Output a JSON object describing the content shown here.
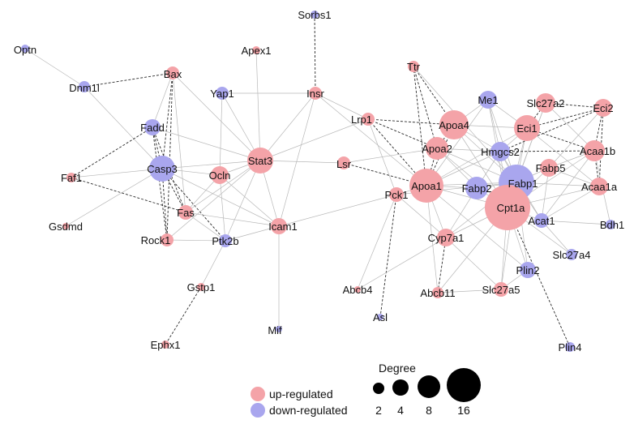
{
  "colors": {
    "up": "#f4a3a8",
    "down": "#a9a6ee",
    "edge_solid": "#b8b8b8",
    "edge_dashed": "#2a2a2a",
    "text": "#111111"
  },
  "network": {
    "nodes": [
      {
        "id": "Optn",
        "label": "Optn",
        "reg": "down"
      },
      {
        "id": "Dnm1l",
        "label": "Dnm1l",
        "reg": "down"
      },
      {
        "id": "Bax",
        "label": "Bax",
        "reg": "up"
      },
      {
        "id": "Apex1",
        "label": "Apex1",
        "reg": "up"
      },
      {
        "id": "Sorbs1",
        "label": "Sorbs1",
        "reg": "down"
      },
      {
        "id": "Yap1",
        "label": "Yap1",
        "reg": "down"
      },
      {
        "id": "Insr",
        "label": "Insr",
        "reg": "up"
      },
      {
        "id": "Fadd",
        "label": "Fadd",
        "reg": "down"
      },
      {
        "id": "Casp3",
        "label": "Casp3",
        "reg": "down"
      },
      {
        "id": "Faf1",
        "label": "Faf1",
        "reg": "up"
      },
      {
        "id": "Ocln",
        "label": "Ocln",
        "reg": "up"
      },
      {
        "id": "Stat3",
        "label": "Stat3",
        "reg": "up"
      },
      {
        "id": "Fas",
        "label": "Fas",
        "reg": "up"
      },
      {
        "id": "Gsdmd",
        "label": "Gsdmd",
        "reg": "up"
      },
      {
        "id": "Rock1",
        "label": "Rock1",
        "reg": "up"
      },
      {
        "id": "Ptk2b",
        "label": "Ptk2b",
        "reg": "down"
      },
      {
        "id": "Icam1",
        "label": "Icam1",
        "reg": "up"
      },
      {
        "id": "Gstp1",
        "label": "Gstp1",
        "reg": "up"
      },
      {
        "id": "Ephx1",
        "label": "Ephx1",
        "reg": "up"
      },
      {
        "id": "Mif",
        "label": "Mif",
        "reg": "down"
      },
      {
        "id": "Lrp1",
        "label": "Lrp1",
        "reg": "up"
      },
      {
        "id": "Lsr",
        "label": "Lsr",
        "reg": "up"
      },
      {
        "id": "Ttr",
        "label": "Ttr",
        "reg": "up"
      },
      {
        "id": "Apoa4",
        "label": "Apoa4",
        "reg": "up"
      },
      {
        "id": "Apoa2",
        "label": "Apoa2",
        "reg": "up"
      },
      {
        "id": "Apoa1",
        "label": "Apoa1",
        "reg": "up"
      },
      {
        "id": "Pck1",
        "label": "Pck1",
        "reg": "up"
      },
      {
        "id": "Me1",
        "label": "Me1",
        "reg": "down"
      },
      {
        "id": "Eci1",
        "label": "Eci1",
        "reg": "up"
      },
      {
        "id": "Slc27a2",
        "label": "Slc27a2",
        "reg": "up"
      },
      {
        "id": "Eci2",
        "label": "Eci2",
        "reg": "up"
      },
      {
        "id": "Hmgcs2",
        "label": "Hmgcs2",
        "reg": "down"
      },
      {
        "id": "Acaa1b",
        "label": "Acaa1b",
        "reg": "up"
      },
      {
        "id": "Fabp5",
        "label": "Fabp5",
        "reg": "up"
      },
      {
        "id": "Fabp1",
        "label": "Fabp1",
        "reg": "down"
      },
      {
        "id": "Fabp2",
        "label": "Fabp2",
        "reg": "down"
      },
      {
        "id": "Acaa1a",
        "label": "Acaa1a",
        "reg": "up"
      },
      {
        "id": "Cpt1a",
        "label": "Cpt1a",
        "reg": "up"
      },
      {
        "id": "Acat1",
        "label": "Acat1",
        "reg": "down"
      },
      {
        "id": "Bdh1",
        "label": "Bdh1",
        "reg": "down"
      },
      {
        "id": "Cyp7a1",
        "label": "Cyp7a1",
        "reg": "up"
      },
      {
        "id": "Slc27a4",
        "label": "Slc27a4",
        "reg": "down"
      },
      {
        "id": "Plin2",
        "label": "Plin2",
        "reg": "down"
      },
      {
        "id": "Abcb4",
        "label": "Abcb4",
        "reg": "up"
      },
      {
        "id": "Abcb11",
        "label": "Abcb11",
        "reg": "up"
      },
      {
        "id": "Slc27a5",
        "label": "Slc27a5",
        "reg": "up"
      },
      {
        "id": "Asl",
        "label": "Asl",
        "reg": "down"
      },
      {
        "id": "Plin4",
        "label": "Plin4",
        "reg": "down"
      }
    ],
    "edges": [
      [
        "Optn",
        "Dnm1l",
        "solid"
      ],
      [
        "Dnm1l",
        "Bax",
        "dashed"
      ],
      [
        "Dnm1l",
        "Casp3",
        "solid"
      ],
      [
        "Bax",
        "Casp3",
        "dashed"
      ],
      [
        "Bax",
        "Fadd",
        "solid"
      ],
      [
        "Bax",
        "Fas",
        "solid"
      ],
      [
        "Bax",
        "Rock1",
        "dashed"
      ],
      [
        "Bax",
        "Stat3",
        "solid"
      ],
      [
        "Apex1",
        "Stat3",
        "solid"
      ],
      [
        "Sorbs1",
        "Insr",
        "dashed"
      ],
      [
        "Yap1",
        "Insr",
        "solid"
      ],
      [
        "Yap1",
        "Stat3",
        "solid"
      ],
      [
        "Yap1",
        "Ocln",
        "solid"
      ],
      [
        "Insr",
        "Stat3",
        "solid"
      ],
      [
        "Insr",
        "Lrp1",
        "solid"
      ],
      [
        "Insr",
        "Apoa1",
        "solid"
      ],
      [
        "Insr",
        "Icam1",
        "solid"
      ],
      [
        "Fadd",
        "Casp3",
        "dashed"
      ],
      [
        "Fadd",
        "Fas",
        "dashed"
      ],
      [
        "Fadd",
        "Faf1",
        "dashed"
      ],
      [
        "Fadd",
        "Stat3",
        "solid"
      ],
      [
        "Fadd",
        "Rock1",
        "dashed"
      ],
      [
        "Casp3",
        "Faf1",
        "solid"
      ],
      [
        "Casp3",
        "Fas",
        "dashed"
      ],
      [
        "Casp3",
        "Rock1",
        "dashed"
      ],
      [
        "Casp3",
        "Ptk2b",
        "dashed"
      ],
      [
        "Casp3",
        "Stat3",
        "solid"
      ],
      [
        "Casp3",
        "Ocln",
        "solid"
      ],
      [
        "Casp3",
        "Icam1",
        "solid"
      ],
      [
        "Casp3",
        "Gsdmd",
        "solid"
      ],
      [
        "Faf1",
        "Fas",
        "dashed"
      ],
      [
        "Ocln",
        "Stat3",
        "solid"
      ],
      [
        "Ocln",
        "Ptk2b",
        "solid"
      ],
      [
        "Ocln",
        "Icam1",
        "solid"
      ],
      [
        "Ocln",
        "Fas",
        "solid"
      ],
      [
        "Stat3",
        "Fas",
        "solid"
      ],
      [
        "Stat3",
        "Icam1",
        "solid"
      ],
      [
        "Stat3",
        "Ptk2b",
        "solid"
      ],
      [
        "Stat3",
        "Lrp1",
        "solid"
      ],
      [
        "Stat3",
        "Lsr",
        "solid"
      ],
      [
        "Stat3",
        "Rock1",
        "solid"
      ],
      [
        "Fas",
        "Icam1",
        "solid"
      ],
      [
        "Fas",
        "Ptk2b",
        "solid"
      ],
      [
        "Rock1",
        "Ptk2b",
        "solid"
      ],
      [
        "Ptk2b",
        "Icam1",
        "solid"
      ],
      [
        "Ptk2b",
        "Gstp1",
        "solid"
      ],
      [
        "Gstp1",
        "Ephx1",
        "dashed"
      ],
      [
        "Icam1",
        "Mif",
        "solid"
      ],
      [
        "Icam1",
        "Pck1",
        "solid"
      ],
      [
        "Lrp1",
        "Apoa4",
        "dashed"
      ],
      [
        "Lrp1",
        "Apoa2",
        "dashed"
      ],
      [
        "Lrp1",
        "Apoa1",
        "dashed"
      ],
      [
        "Lrp1",
        "Pck1",
        "solid"
      ],
      [
        "Lsr",
        "Apoa1",
        "dashed"
      ],
      [
        "Lsr",
        "Apoa2",
        "solid"
      ],
      [
        "Ttr",
        "Apoa4",
        "dashed"
      ],
      [
        "Ttr",
        "Apoa2",
        "dashed"
      ],
      [
        "Ttr",
        "Apoa1",
        "dashed"
      ],
      [
        "Ttr",
        "Fabp1",
        "solid"
      ],
      [
        "Apoa4",
        "Apoa2",
        "dashed"
      ],
      [
        "Apoa4",
        "Apoa1",
        "dashed"
      ],
      [
        "Apoa4",
        "Me1",
        "solid"
      ],
      [
        "Apoa4",
        "Hmgcs2",
        "solid"
      ],
      [
        "Apoa4",
        "Fabp1",
        "solid"
      ],
      [
        "Apoa4",
        "Cpt1a",
        "solid"
      ],
      [
        "Apoa4",
        "Eci1",
        "solid"
      ],
      [
        "Apoa2",
        "Apoa1",
        "dashed"
      ],
      [
        "Apoa2",
        "Fabp1",
        "solid"
      ],
      [
        "Apoa2",
        "Cpt1a",
        "solid"
      ],
      [
        "Apoa2",
        "Hmgcs2",
        "solid"
      ],
      [
        "Apoa2",
        "Fabp2",
        "solid"
      ],
      [
        "Apoa1",
        "Pck1",
        "solid"
      ],
      [
        "Apoa1",
        "Fabp2",
        "solid"
      ],
      [
        "Apoa1",
        "Fabp1",
        "solid"
      ],
      [
        "Apoa1",
        "Cpt1a",
        "solid"
      ],
      [
        "Apoa1",
        "Cyp7a1",
        "solid"
      ],
      [
        "Apoa1",
        "Hmgcs2",
        "solid"
      ],
      [
        "Apoa1",
        "Me1",
        "solid"
      ],
      [
        "Apoa1",
        "Abcb11",
        "solid"
      ],
      [
        "Apoa1",
        "Eci1",
        "solid"
      ],
      [
        "Apoa1",
        "Plin2",
        "solid"
      ],
      [
        "Pck1",
        "Asl",
        "dashed"
      ],
      [
        "Pck1",
        "Abcb4",
        "solid"
      ],
      [
        "Pck1",
        "Cyp7a1",
        "solid"
      ],
      [
        "Pck1",
        "Fabp1",
        "solid"
      ],
      [
        "Me1",
        "Eci1",
        "solid"
      ],
      [
        "Me1",
        "Hmgcs2",
        "solid"
      ],
      [
        "Me1",
        "Fabp1",
        "solid"
      ],
      [
        "Me1",
        "Cpt1a",
        "solid"
      ],
      [
        "Eci1",
        "Slc27a2",
        "dashed"
      ],
      [
        "Eci1",
        "Eci2",
        "dashed"
      ],
      [
        "Eci1",
        "Acaa1b",
        "dashed"
      ],
      [
        "Eci1",
        "Hmgcs2",
        "solid"
      ],
      [
        "Eci1",
        "Fabp1",
        "solid"
      ],
      [
        "Eci1",
        "Cpt1a",
        "solid"
      ],
      [
        "Eci1",
        "Acaa1a",
        "solid"
      ],
      [
        "Slc27a2",
        "Eci2",
        "dashed"
      ],
      [
        "Slc27a2",
        "Acaa1b",
        "solid"
      ],
      [
        "Slc27a2",
        "Cpt1a",
        "solid"
      ],
      [
        "Slc27a2",
        "Fabp1",
        "solid"
      ],
      [
        "Eci2",
        "Acaa1b",
        "dashed"
      ],
      [
        "Eci2",
        "Acaa1a",
        "dashed"
      ],
      [
        "Eci2",
        "Hmgcs2",
        "dashed"
      ],
      [
        "Eci2",
        "Fabp5",
        "solid"
      ],
      [
        "Hmgcs2",
        "Acaa1b",
        "dashed"
      ],
      [
        "Hmgcs2",
        "Fabp1",
        "solid"
      ],
      [
        "Hmgcs2",
        "Cpt1a",
        "solid"
      ],
      [
        "Hmgcs2",
        "Fabp2",
        "solid"
      ],
      [
        "Hmgcs2",
        "Acat1",
        "solid"
      ],
      [
        "Acaa1b",
        "Acaa1a",
        "dashed"
      ],
      [
        "Acaa1b",
        "Fabp5",
        "solid"
      ],
      [
        "Acaa1b",
        "Cpt1a",
        "solid"
      ],
      [
        "Acaa1b",
        "Acat1",
        "solid"
      ],
      [
        "Acaa1b",
        "Bdh1",
        "solid"
      ],
      [
        "Fabp5",
        "Fabp1",
        "solid"
      ],
      [
        "Fabp5",
        "Cpt1a",
        "solid"
      ],
      [
        "Fabp5",
        "Acaa1a",
        "solid"
      ],
      [
        "Fabp5",
        "Acat1",
        "solid"
      ],
      [
        "Fabp1",
        "Fabp2",
        "solid"
      ],
      [
        "Fabp1",
        "Cpt1a",
        "solid"
      ],
      [
        "Fabp1",
        "Acat1",
        "solid"
      ],
      [
        "Fabp1",
        "Cyp7a1",
        "solid"
      ],
      [
        "Fabp1",
        "Plin2",
        "solid"
      ],
      [
        "Fabp1",
        "Slc27a5",
        "solid"
      ],
      [
        "Fabp1",
        "Acaa1a",
        "solid"
      ],
      [
        "Fabp2",
        "Cpt1a",
        "solid"
      ],
      [
        "Fabp2",
        "Cyp7a1",
        "solid"
      ],
      [
        "Acaa1a",
        "Acat1",
        "solid"
      ],
      [
        "Acaa1a",
        "Cpt1a",
        "solid"
      ],
      [
        "Cpt1a",
        "Acat1",
        "solid"
      ],
      [
        "Cpt1a",
        "Cyp7a1",
        "solid"
      ],
      [
        "Cpt1a",
        "Plin2",
        "solid"
      ],
      [
        "Cpt1a",
        "Slc27a4",
        "solid"
      ],
      [
        "Cpt1a",
        "Slc27a5",
        "solid"
      ],
      [
        "Cpt1a",
        "Plin4",
        "dashed"
      ],
      [
        "Cpt1a",
        "Abcb11",
        "solid"
      ],
      [
        "Acat1",
        "Bdh1",
        "solid"
      ],
      [
        "Acat1",
        "Slc27a4",
        "solid"
      ],
      [
        "Cyp7a1",
        "Abcb11",
        "dashed"
      ],
      [
        "Cyp7a1",
        "Slc27a5",
        "solid"
      ],
      [
        "Cyp7a1",
        "Abcb4",
        "solid"
      ],
      [
        "Abcb11",
        "Slc27a5",
        "solid"
      ],
      [
        "Slc27a5",
        "Plin2",
        "solid"
      ]
    ]
  },
  "legend": {
    "up_label": "up-regulated",
    "down_label": "down-regulated",
    "degree_title": "Degree",
    "degree_values": [
      "2",
      "4",
      "8",
      "16"
    ]
  }
}
